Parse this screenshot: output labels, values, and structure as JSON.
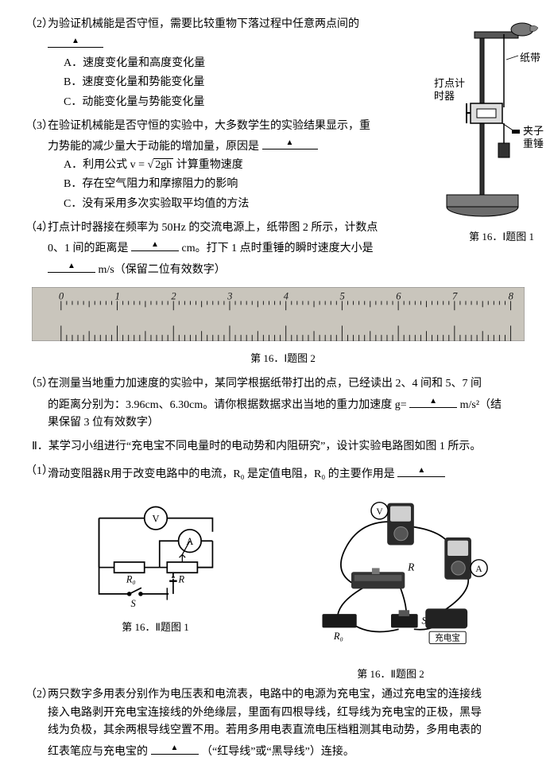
{
  "q2": {
    "text_a": "为验证机械能是否守恒，需要比较重物下落过程中任意两点间的",
    "opt_a": "A．速度变化量和高度变化量",
    "opt_b": "B．速度变化量和势能变化量",
    "opt_c": "C．动能变化量与势能变化量"
  },
  "q3": {
    "text_a": "在验证机械能是否守恒的实验中，大多数学生的实验结果显示，重",
    "text_b": "力势能的减少量大于动能的增加量，原因是",
    "opt_a": "A．利用公式 v =",
    "opt_a_rad": "2gh",
    "opt_a_tail": " 计算重物速度",
    "opt_b": "B．存在空气阻力和摩擦阻力的影响",
    "opt_c": "C．没有采用多次实验取平均值的方法"
  },
  "q4": {
    "text_a": "打点计时器接在频率为 50Hz 的交流电源上，纸带图 2 所示，计数点",
    "text_b": "0、1 间的距离是",
    "text_c": "cm。打下 1 点时重锤的瞬时速度大小是",
    "text_d": "m/s（保留二位有效数字）"
  },
  "apparatus": {
    "labels": {
      "tape": "纸带",
      "timer_a": "打点计",
      "timer_b": "时器",
      "clip": "夹子",
      "weight": "重锤"
    },
    "caption": "第 16．Ⅰ题图 1",
    "colors": {
      "stroke": "#000000",
      "fill_light": "#ffffff",
      "fill_base": "#5a5a5a",
      "fill_timer": "#dddddd"
    }
  },
  "ruler": {
    "length_cm": 8,
    "bg_color": "#c9c5bc",
    "tick_color": "#1a1a1a",
    "number_color": "#1a1a1a",
    "caption": "第 16．Ⅰ题图 2"
  },
  "q5": {
    "text_a": "在测量当地重力加速度的实验中，某同学根据纸带打出的点，已经读出 2、4 间和 5、7 间",
    "text_b": "的距离分别为：3.96cm、6.30cm。请你根据数据求出当地的重力加速度 g=",
    "text_c": "m/s²（结",
    "text_d": "果保留 3 位有效数字）"
  },
  "partII": {
    "intro": "Ⅱ．某学习小组进行“充电宝不同电量时的电动势和内阻研究”，设计实验电路图如图 1 所示。"
  },
  "pII_q1": {
    "text_a": "滑动变阻器R用于改变电路中的电流，R₀ 是定值电阻，R₀ 的主要作用是"
  },
  "circuit": {
    "labels": {
      "V": "V",
      "A": "A",
      "R0": "R₀",
      "R": "R",
      "S": "S",
      "bank": "充电宝"
    },
    "caption1": "第 16．Ⅱ题图 1",
    "caption2": "第 16．Ⅱ题图 2",
    "colors": {
      "wire": "#000000",
      "meter_body": "#2a2a2a",
      "meter_face": "#d0d0d0",
      "rheostat": "#333333",
      "bank_body": "#222222",
      "bank_label_bg": "#ffffff"
    }
  },
  "pII_q2": {
    "text_a": "两只数字多用表分别作为电压表和电流表，电路中的电源为充电宝，通过充电宝的连接线",
    "text_b": "接入电路剥开充电宝连接线的外绝缘层，里面有四根导线，红导线为充电宝的正极，黑导",
    "text_c": "线为负极，其余两根导线空置不用。若用多用电表直流电压档粗测其电动势，多用电表的",
    "text_d": "红表笔应与充电宝的",
    "text_e": "（“红导线”或“黑导线”）连接。"
  }
}
